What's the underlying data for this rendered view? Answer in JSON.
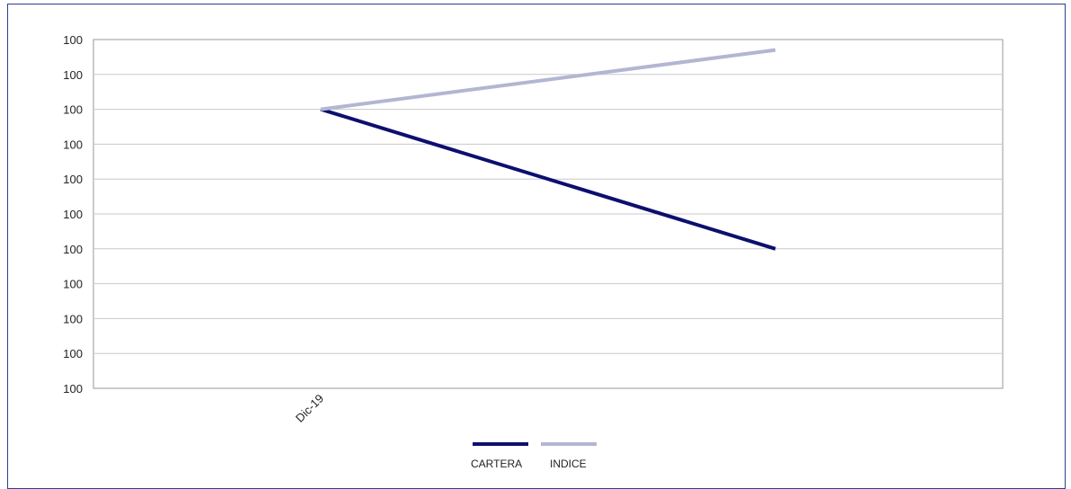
{
  "chart_data": {
    "type": "line",
    "categories": [
      "Dic-19",
      ""
    ],
    "series": [
      {
        "name": "CARTERA",
        "color": "#0d0f6e",
        "values": [
          100,
          99.9
        ]
      },
      {
        "name": "INDICE",
        "color": "#b3b6d1",
        "values": [
          100,
          100.0425
        ]
      }
    ],
    "y_ticks": [
      "100",
      "100",
      "100",
      "100",
      "100",
      "100",
      "100",
      "100",
      "100",
      "100",
      "100"
    ],
    "ylim": [
      99.8,
      100.05
    ],
    "grid": true,
    "legend_position": "bottom"
  }
}
